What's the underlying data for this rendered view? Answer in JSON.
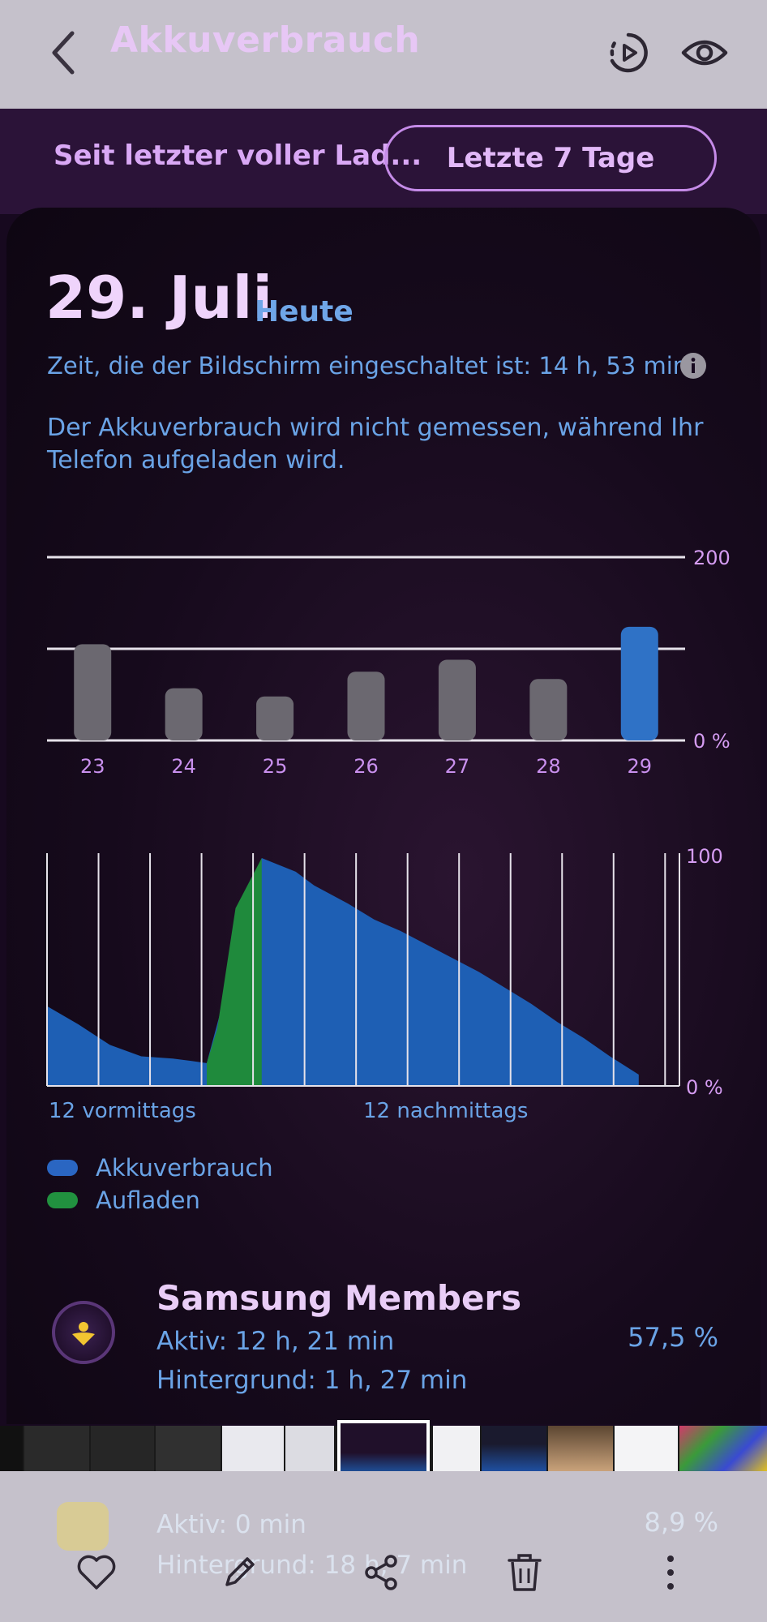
{
  "header": {
    "title": "Akkuverbrauch",
    "tabs": [
      {
        "label": "Seit letzter voller Lad...",
        "selected": false
      },
      {
        "label": "Letzte 7 Tage",
        "selected": true
      }
    ]
  },
  "summary": {
    "date": "29. Juli",
    "day_label": "Heute",
    "screen_time": "Zeit, die der Bildschirm eingeschaltet ist: 14 h, 53 min",
    "note": "Der Akkuverbrauch wird nicht gemessen, während Ihr Telefon aufgeladen wird."
  },
  "chart_data": [
    {
      "type": "bar",
      "categories": [
        "23",
        "24",
        "25",
        "26",
        "27",
        "28",
        "29"
      ],
      "values": [
        105,
        57,
        48,
        75,
        88,
        67,
        124
      ],
      "ylim": [
        0,
        200
      ],
      "ytick_labels": [
        "200",
        "0 %"
      ],
      "highlight_category": "29",
      "colors": {
        "default": "#6b6870",
        "highlight": "#2f72c6"
      }
    },
    {
      "type": "area",
      "x_labels": [
        "12 vormittags",
        "12 nachmittags"
      ],
      "ylim": [
        0,
        100
      ],
      "ytick_labels": [
        "100",
        "0 %"
      ],
      "x_hours": [
        0,
        1.2,
        2.4,
        3.6,
        4.8,
        5.5,
        6.1,
        6.5,
        7.2,
        8.2,
        9.5,
        10.2,
        11.5,
        12.5,
        13.5,
        14.5,
        15.5,
        16.5,
        17.5,
        18.5,
        19.5,
        20.5,
        21.5,
        22.6
      ],
      "series": [
        {
          "name": "Akkuverbrauch",
          "color": "#1e5fb4",
          "values": [
            35,
            27,
            18,
            13,
            12,
            11,
            10,
            null,
            null,
            100,
            94,
            88,
            80,
            73,
            68,
            62,
            56,
            50,
            43,
            36,
            28,
            21,
            13,
            5
          ]
        },
        {
          "name": "Aufladen",
          "color": "#1f8a3c",
          "values": [
            null,
            null,
            null,
            null,
            null,
            null,
            10,
            25,
            78,
            100,
            null,
            null,
            null,
            null,
            null,
            null,
            null,
            null,
            null,
            null,
            null,
            null,
            null,
            null
          ]
        }
      ]
    }
  ],
  "legend": [
    {
      "label": "Akkuverbrauch",
      "color": "#2a66c2"
    },
    {
      "label": "Aufladen",
      "color": "#21913f"
    }
  ],
  "apps": [
    {
      "name": "Samsung Members",
      "active": "Aktiv: 12 h, 21 min",
      "background": "Hintergrund: 1 h, 27 min",
      "percent": "57,5 %"
    },
    {
      "name": "",
      "active": "Aktiv: 0 min",
      "background": "Hintergrund: 18 h, 7 min",
      "percent": "8,9 %"
    }
  ],
  "toolbar": {
    "icons": [
      "heart-icon",
      "pencil-icon",
      "share-icon",
      "trash-icon",
      "more-icon"
    ]
  }
}
